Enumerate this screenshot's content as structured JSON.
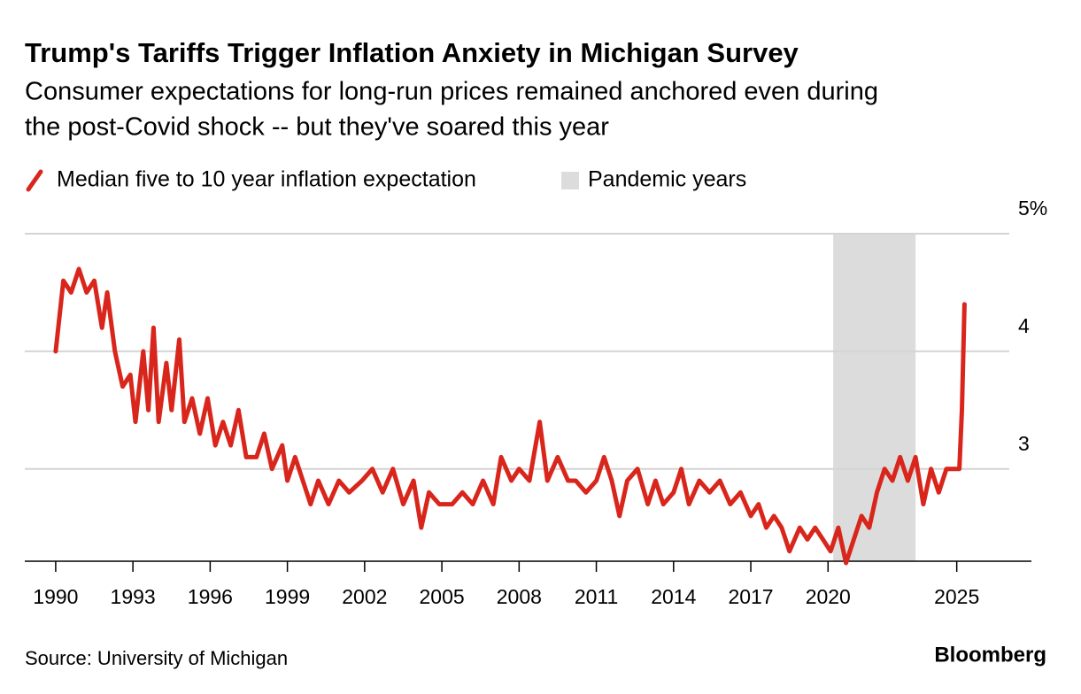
{
  "chart_data": {
    "type": "line",
    "title": "Trump's Tariffs Trigger Inflation Anxiety in Michigan Survey",
    "subtitle": [
      "Consumer expectations for long-run prices remained anchored even during",
      "the post-Covid shock -- but they've soared this year"
    ],
    "source": "Source: University of Michigan",
    "brand": "Bloomberg",
    "x": [
      1990.0,
      1990.3,
      1990.6,
      1990.9,
      1991.2,
      1991.5,
      1991.8,
      1992.0,
      1992.3,
      1992.6,
      1992.9,
      1993.1,
      1993.4,
      1993.6,
      1993.8,
      1994.0,
      1994.3,
      1994.5,
      1994.8,
      1995.0,
      1995.3,
      1995.6,
      1995.9,
      1996.2,
      1996.5,
      1996.8,
      1997.1,
      1997.4,
      1997.8,
      1998.1,
      1998.4,
      1998.8,
      1999.0,
      1999.3,
      1999.6,
      1999.9,
      2000.2,
      2000.6,
      2001.0,
      2001.4,
      2001.9,
      2002.3,
      2002.7,
      2003.1,
      2003.5,
      2003.9,
      2004.2,
      2004.5,
      2004.9,
      2005.4,
      2005.8,
      2006.2,
      2006.6,
      2007.0,
      2007.3,
      2007.7,
      2008.0,
      2008.4,
      2008.8,
      2009.1,
      2009.5,
      2009.9,
      2010.2,
      2010.6,
      2011.0,
      2011.3,
      2011.6,
      2011.9,
      2012.2,
      2012.6,
      2013.0,
      2013.3,
      2013.6,
      2014.0,
      2014.3,
      2014.6,
      2015.0,
      2015.4,
      2015.8,
      2016.2,
      2016.6,
      2017.0,
      2017.3,
      2017.6,
      2017.9,
      2018.2,
      2018.5,
      2018.9,
      2019.2,
      2019.5,
      2019.8,
      2020.1,
      2020.4,
      2020.7,
      2021.0,
      2021.3,
      2021.6,
      2021.9,
      2022.2,
      2022.5,
      2022.8,
      2023.1,
      2023.4,
      2023.7,
      2024.0,
      2024.3,
      2024.6,
      2024.9,
      2025.1,
      2025.2,
      2025.3
    ],
    "xlim": [
      1988.8,
      2027.9
    ],
    "xticks": [
      1990,
      1993,
      1996,
      1999,
      2002,
      2005,
      2008,
      2011,
      2014,
      2017,
      2020,
      2025
    ],
    "ylim": [
      2.2,
      5.0
    ],
    "yticks": [
      3,
      4,
      {
        "value": 5,
        "label": "5%"
      }
    ],
    "grid": true,
    "series": [
      {
        "name": "Median five to 10 year inflation expectation",
        "color": "#d9261c",
        "values": [
          4.0,
          4.6,
          4.5,
          4.7,
          4.5,
          4.6,
          4.2,
          4.5,
          4.0,
          3.7,
          3.8,
          3.4,
          4.0,
          3.5,
          4.2,
          3.4,
          3.9,
          3.5,
          4.1,
          3.4,
          3.6,
          3.3,
          3.6,
          3.2,
          3.4,
          3.2,
          3.5,
          3.1,
          3.1,
          3.3,
          3.0,
          3.2,
          2.9,
          3.1,
          2.9,
          2.7,
          2.9,
          2.7,
          2.9,
          2.8,
          2.9,
          3.0,
          2.8,
          3.0,
          2.7,
          2.9,
          2.5,
          2.8,
          2.7,
          2.7,
          2.8,
          2.7,
          2.9,
          2.7,
          3.1,
          2.9,
          3.0,
          2.9,
          3.4,
          2.9,
          3.1,
          2.9,
          2.9,
          2.8,
          2.9,
          3.1,
          2.9,
          2.6,
          2.9,
          3.0,
          2.7,
          2.9,
          2.7,
          2.8,
          3.0,
          2.7,
          2.9,
          2.8,
          2.9,
          2.7,
          2.8,
          2.6,
          2.7,
          2.5,
          2.6,
          2.5,
          2.3,
          2.5,
          2.4,
          2.5,
          2.4,
          2.3,
          2.5,
          2.2,
          2.4,
          2.6,
          2.5,
          2.8,
          3.0,
          2.9,
          3.1,
          2.9,
          3.1,
          2.7,
          3.0,
          2.8,
          3.0,
          3.0,
          3.0,
          3.5,
          4.4
        ]
      }
    ],
    "shade": {
      "name": "Pandemic years",
      "range": [
        2020.2,
        2023.4
      ],
      "color": "#dcdcdc"
    }
  }
}
